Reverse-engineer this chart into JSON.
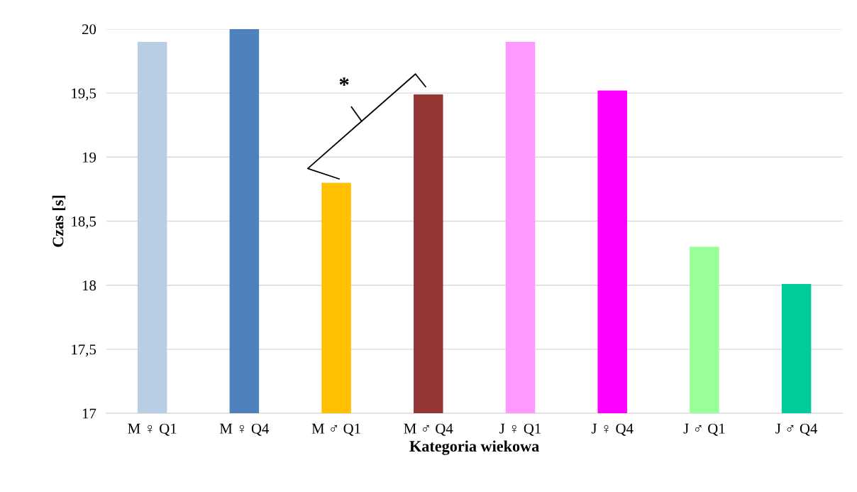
{
  "chart_data": {
    "type": "bar",
    "xlabel": "Kategoria wiekowa",
    "ylabel": "Czas [s]",
    "categories": [
      "M ♀ Q1",
      "M ♀ Q4",
      "M ♂ Q1",
      "M ♂ Q4",
      "J ♀ Q1",
      "J ♀ Q4",
      "J ♂ Q1",
      "J ♂ Q4"
    ],
    "values": [
      19.9,
      20.0,
      18.8,
      19.49,
      19.9,
      19.52,
      18.3,
      18.01
    ],
    "colors": [
      "#b9cde5",
      "#4f81bd",
      "#ffc000",
      "#953735",
      "#ff99ff",
      "#ff00ff",
      "#99ff99",
      "#00cc99"
    ],
    "ylim": [
      17,
      20
    ],
    "yticks": [
      17,
      {
        "value": 17.5,
        "label": "17,5"
      },
      18,
      {
        "value": 18.5,
        "label": "18,5"
      },
      19,
      {
        "value": 19.5,
        "label": "19,5"
      },
      20
    ],
    "grid": "y",
    "legend": false,
    "annotations": [
      "*"
    ]
  }
}
